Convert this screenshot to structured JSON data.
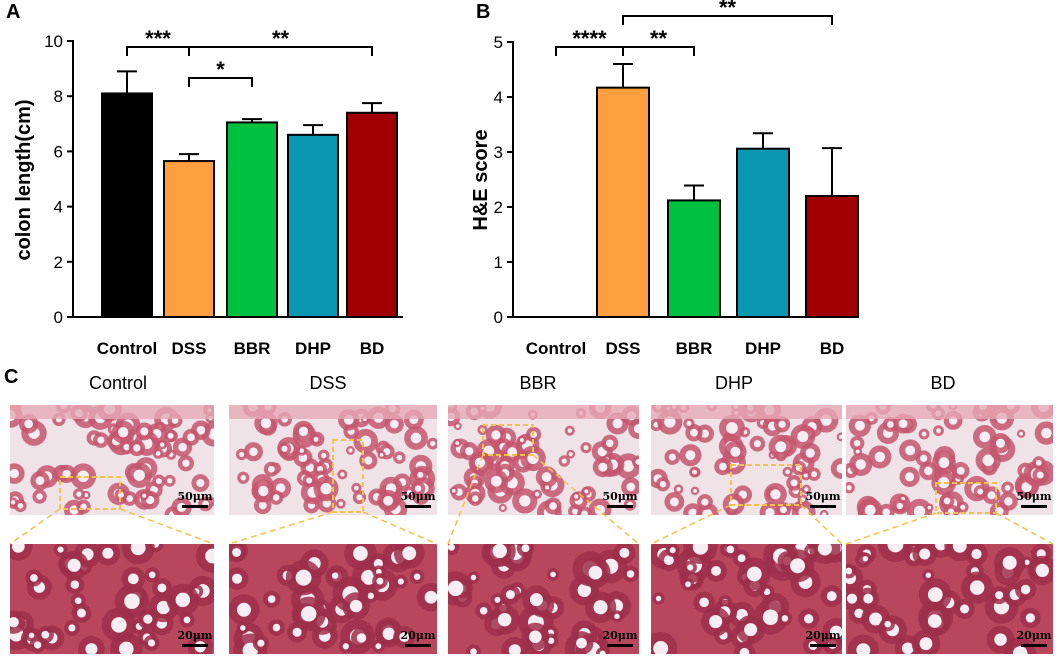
{
  "panels": {
    "a": "A",
    "b": "B",
    "c": "C"
  },
  "chart_data": [
    {
      "type": "bar",
      "categories": [
        "Control",
        "DSS",
        "BBR",
        "DHP",
        "BD"
      ],
      "values": [
        8.1,
        5.65,
        7.05,
        6.6,
        7.4
      ],
      "errors": [
        0.8,
        0.25,
        0.12,
        0.35,
        0.35
      ],
      "colors": [
        "#000000",
        "#ffa040",
        "#00c040",
        "#0a97b0",
        "#a00000"
      ],
      "ylabel": "colon length(cm)",
      "xlabel": "",
      "ylim": [
        0,
        10
      ],
      "yticks": [
        0,
        2,
        4,
        6,
        8,
        10
      ],
      "grid": false,
      "significance": [
        {
          "from": 0,
          "to": 1,
          "label": "***"
        },
        {
          "from": 1,
          "to": 2,
          "label": "*"
        },
        {
          "from": 1,
          "to": 4,
          "label": "**"
        }
      ]
    },
    {
      "type": "bar",
      "categories": [
        "Control",
        "DSS",
        "BBR",
        "DHP",
        "BD"
      ],
      "values": [
        0,
        4.17,
        2.12,
        3.06,
        2.2
      ],
      "errors": [
        0,
        0.43,
        0.27,
        0.28,
        0.87
      ],
      "colors": [
        "#000000",
        "#ffa040",
        "#00c040",
        "#0a97b0",
        "#a00000"
      ],
      "ylabel": "H&E score",
      "xlabel": "",
      "ylim": [
        0,
        5
      ],
      "yticks": [
        0,
        1,
        2,
        3,
        4,
        5
      ],
      "grid": false,
      "significance": [
        {
          "from": 0,
          "to": 1,
          "label": "****"
        },
        {
          "from": 1,
          "to": 2,
          "label": "**"
        },
        {
          "from": 1,
          "to": 4,
          "label": "**"
        }
      ]
    }
  ],
  "micrographs": {
    "groups": [
      "Control",
      "DSS",
      "BBR",
      "DHP",
      "BD"
    ],
    "top_scale": "50μm",
    "bottom_scale": "20μm",
    "box_color": "#f2c24a",
    "tissue_color": "#b8475e",
    "stroma_color": "#e6a9b5"
  }
}
